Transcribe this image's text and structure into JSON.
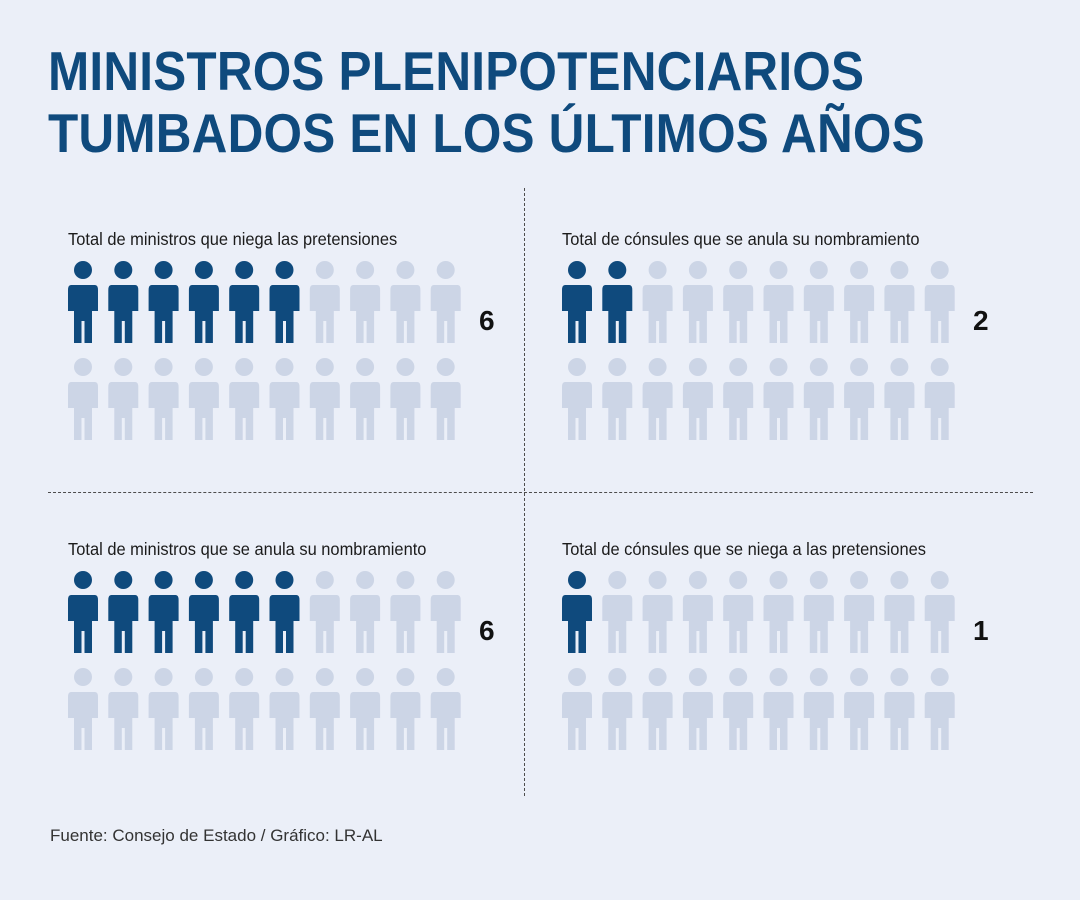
{
  "title": {
    "line1": "MINISTROS PLENIPOTENCIARIOS",
    "line2": "TUMBADOS EN LOS ÚLTIMOS AÑOS"
  },
  "colors": {
    "highlight": "#0f4a7d",
    "muted": "#ccd5e6",
    "background": "#ebeff8"
  },
  "chart_data": {
    "type": "pictogram",
    "icon": "person-icon",
    "icons_per_panel": 20,
    "panels": [
      {
        "label": "Total de ministros que niega las pretensiones",
        "value": 6
      },
      {
        "label": "Total de cónsules que se anula su nombramiento",
        "value": 2
      },
      {
        "label": "Total de ministros que se anula su nombramiento",
        "value": 6
      },
      {
        "label": "Total de cónsules que se niega a las pretensiones",
        "value": 1
      }
    ]
  },
  "source": "Fuente: Consejo de Estado / Gráfico: LR-AL"
}
